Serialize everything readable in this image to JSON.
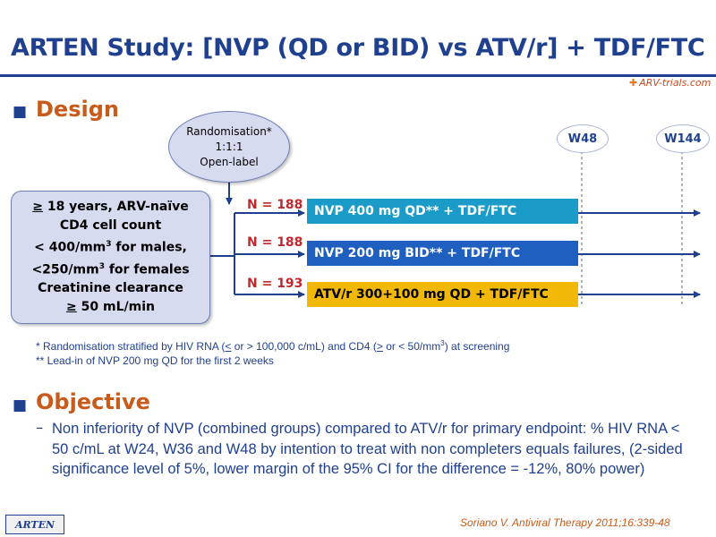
{
  "header": {
    "title": "ARTEN Study: [NVP (QD or BID) vs ATV/r] + TDF/FTC",
    "logo_text": "ARV-trials.com"
  },
  "design": {
    "heading": "Design",
    "randomisation": [
      "Randomisation*",
      "1:1:1",
      "Open-label"
    ],
    "eligibility": {
      "line1_prefix": "≥",
      "line1_text": " 18 years, ARV-naïve",
      "line2": "CD4 cell count",
      "line3": "< 400/mm",
      "line3_sup": "3",
      "line3_suffix": " for males,",
      "line4": "<250/mm",
      "line4_sup": "3",
      "line4_suffix": " for females",
      "line5": "Creatinine clearance",
      "line6_prefix": "≥",
      "line6_text": " 50 mL/min"
    },
    "weeks": [
      "W48",
      "W144"
    ],
    "arms": [
      {
        "n": "N = 188",
        "label": "NVP 400 mg QD** + TDF/FTC",
        "color": "#1a9bc8",
        "text_color": "#ffffff"
      },
      {
        "n": "N = 188",
        "label": "NVP 200 mg BID** + TDF/FTC",
        "color": "#1f5fc0",
        "text_color": "#ffffff"
      },
      {
        "n": "N = 193",
        "label": "ATV/r 300+100 mg QD + TDF/FTC",
        "color": "#f2b807",
        "text_color": "#000000"
      }
    ],
    "footnote1_a": "* Randomisation stratified by HIV RNA (",
    "footnote1_b": "<",
    "footnote1_c": " or > 100,000 c/mL) and CD4 (",
    "footnote1_d": ">",
    "footnote1_e": " or < 50/mm",
    "footnote1_sup": "3",
    "footnote1_f": ") at screening",
    "footnote2": "** Lead-in of NVP 200 mg QD for the first 2 weeks"
  },
  "objective": {
    "heading": "Objective",
    "dash": "–",
    "text": "Non inferiority of NVP (combined groups) compared to ATV/r for primary endpoint: % HIV RNA < 50 c/mL at W24, W36 and W48 by intention to treat with non completers equals failures, (2-sided significance level of 5%, lower margin of the 95% CI for the difference = -12%, 80% power)"
  },
  "footer": {
    "study_tag": "ARTEN",
    "citation": "Soriano V. Antiviral Therapy 2011;16:339-48"
  },
  "colors": {
    "title_blue": "#1f3f8f",
    "section_orange": "#c85a1a",
    "n_red": "#c0282d",
    "box_fill": "#d6dbf0"
  }
}
